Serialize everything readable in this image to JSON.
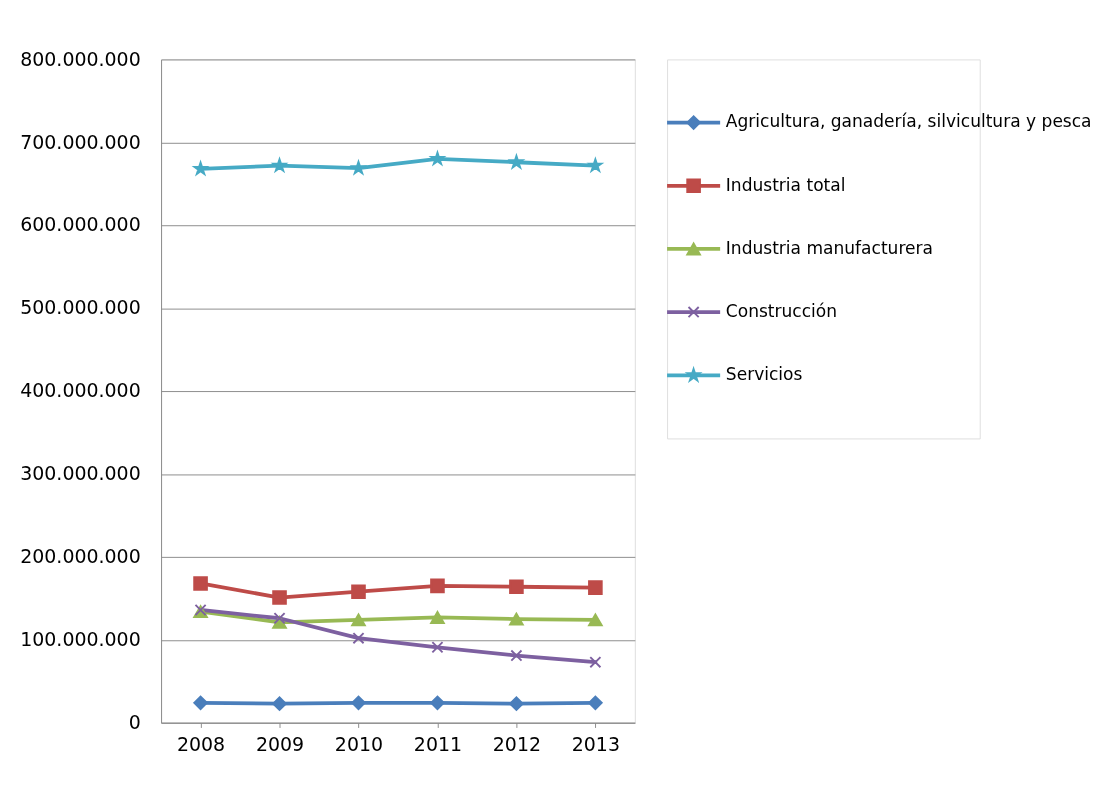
{
  "chart_data": {
    "type": "line",
    "categories": [
      "2008",
      "2009",
      "2010",
      "2011",
      "2012",
      "2013"
    ],
    "series": [
      {
        "name": "Agricultura, ganadería, silvicultura y pesca",
        "color": "#4a7ebb",
        "marker": "diamond",
        "values": [
          24000000,
          23000000,
          24000000,
          24000000,
          23000000,
          24000000
        ]
      },
      {
        "name": "Industria total",
        "color": "#be4b48",
        "marker": "square",
        "values": [
          168000000,
          151000000,
          158000000,
          165000000,
          164000000,
          163000000
        ]
      },
      {
        "name": "Industria manufacturera",
        "color": "#98b954",
        "marker": "triangle",
        "values": [
          134000000,
          121000000,
          124000000,
          127000000,
          125000000,
          124000000
        ]
      },
      {
        "name": "Construcción",
        "color": "#7d60a0",
        "marker": "cross",
        "values": [
          136000000,
          126000000,
          102000000,
          91000000,
          81000000,
          73000000
        ]
      },
      {
        "name": "Servicios",
        "color": "#46aac5",
        "marker": "star",
        "values": [
          668000000,
          672000000,
          669000000,
          680000000,
          676000000,
          672000000
        ]
      }
    ],
    "ylim": [
      0,
      800000000
    ],
    "yticks": [
      0,
      {
        "value": 100000000,
        "label": "100.000.000"
      },
      {
        "value": 200000000,
        "label": "200.000.000"
      },
      {
        "value": 300000000,
        "label": "300.000.000"
      },
      {
        "value": 400000000,
        "label": "400.000.000"
      },
      {
        "value": 500000000,
        "label": "500.000.000"
      },
      {
        "value": 600000000,
        "label": "600.000.000"
      },
      {
        "value": 700000000,
        "label": "700.000.000"
      },
      {
        "value": 800000000,
        "label": "800.000.000"
      }
    ],
    "grid": "y",
    "legend": "right",
    "line_style": "solid"
  }
}
